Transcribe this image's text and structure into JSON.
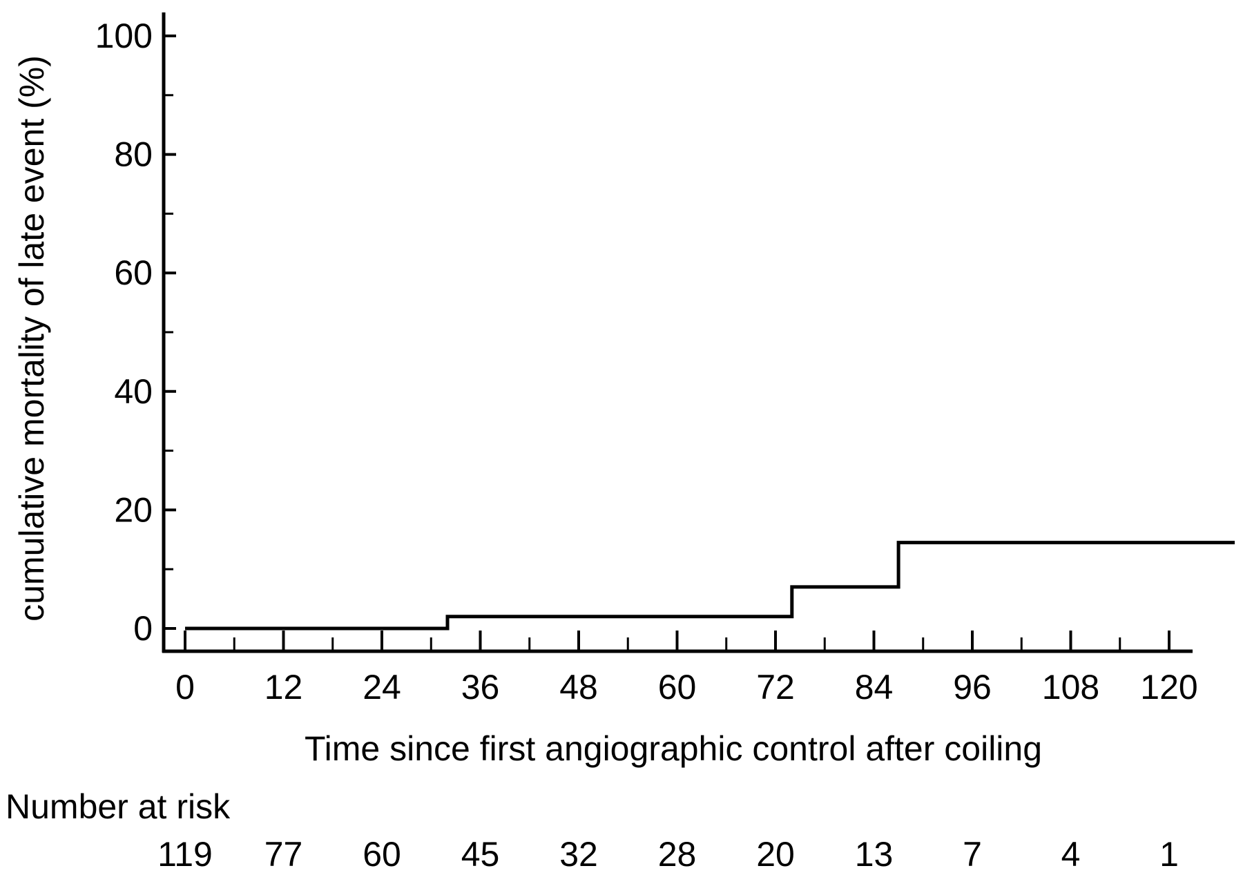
{
  "chart_data": {
    "type": "line",
    "subtype": "step",
    "title": "",
    "xlabel": "Time since first angiographic control after coiling",
    "ylabel": "cumulative mortality of late event (%)",
    "xlim": [
      -3,
      127
    ],
    "ylim": [
      -4,
      104
    ],
    "x_ticks": [
      0,
      12,
      24,
      36,
      48,
      60,
      72,
      84,
      96,
      108,
      120
    ],
    "x_tick_labels": [
      "0",
      "12",
      "24",
      "36",
      "48",
      "60",
      "72",
      "84",
      "96",
      "108",
      "120"
    ],
    "x_minor_ticks": [
      6,
      18,
      30,
      42,
      54,
      66,
      78,
      90,
      102,
      114
    ],
    "y_ticks": [
      0,
      20,
      40,
      60,
      80,
      100
    ],
    "y_tick_labels": [
      "0",
      "20",
      "40",
      "60",
      "80",
      "100"
    ],
    "y_minor_ticks": [
      10,
      30,
      50,
      70,
      90
    ],
    "grid": false,
    "legend": "none",
    "series": [
      {
        "color": "#000000",
        "x": [
          0,
          32,
          32,
          74,
          74,
          87,
          87,
          128
        ],
        "y": [
          0,
          0,
          2,
          2,
          7,
          7,
          14.5,
          14.5
        ]
      }
    ],
    "risk_table": {
      "title": "Number at risk",
      "x": [
        0,
        12,
        24,
        36,
        48,
        60,
        72,
        84,
        96,
        108,
        120
      ],
      "values": [
        "119",
        "77",
        "60",
        "45",
        "32",
        "28",
        "20",
        "13",
        "7",
        "4",
        "1"
      ]
    }
  }
}
